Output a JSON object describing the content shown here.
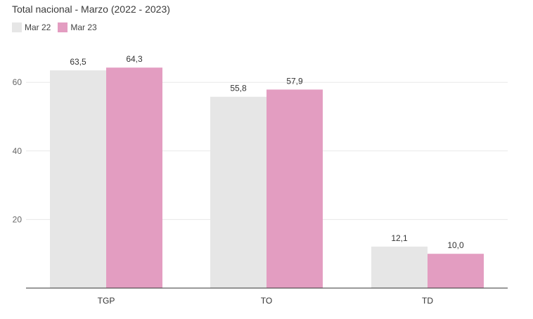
{
  "chart_data": {
    "type": "bar",
    "title": "Total nacional - Marzo (2022 - 2023)",
    "categories": [
      "TGP",
      "TO",
      "TD"
    ],
    "series": [
      {
        "name": "Mar 22",
        "values": [
          63.5,
          55.8,
          12.1
        ],
        "labels": [
          "63,5",
          "55,8",
          "12,1"
        ],
        "color": "#e6e6e6"
      },
      {
        "name": "Mar 23",
        "values": [
          64.3,
          57.9,
          10.0
        ],
        "labels": [
          "64,3",
          "57,9",
          "10,0"
        ],
        "color": "#e39dc1"
      }
    ],
    "yticks": [
      20,
      40,
      60
    ],
    "ylim": [
      0,
      70
    ],
    "grid": true,
    "legend_position": "top-left"
  }
}
